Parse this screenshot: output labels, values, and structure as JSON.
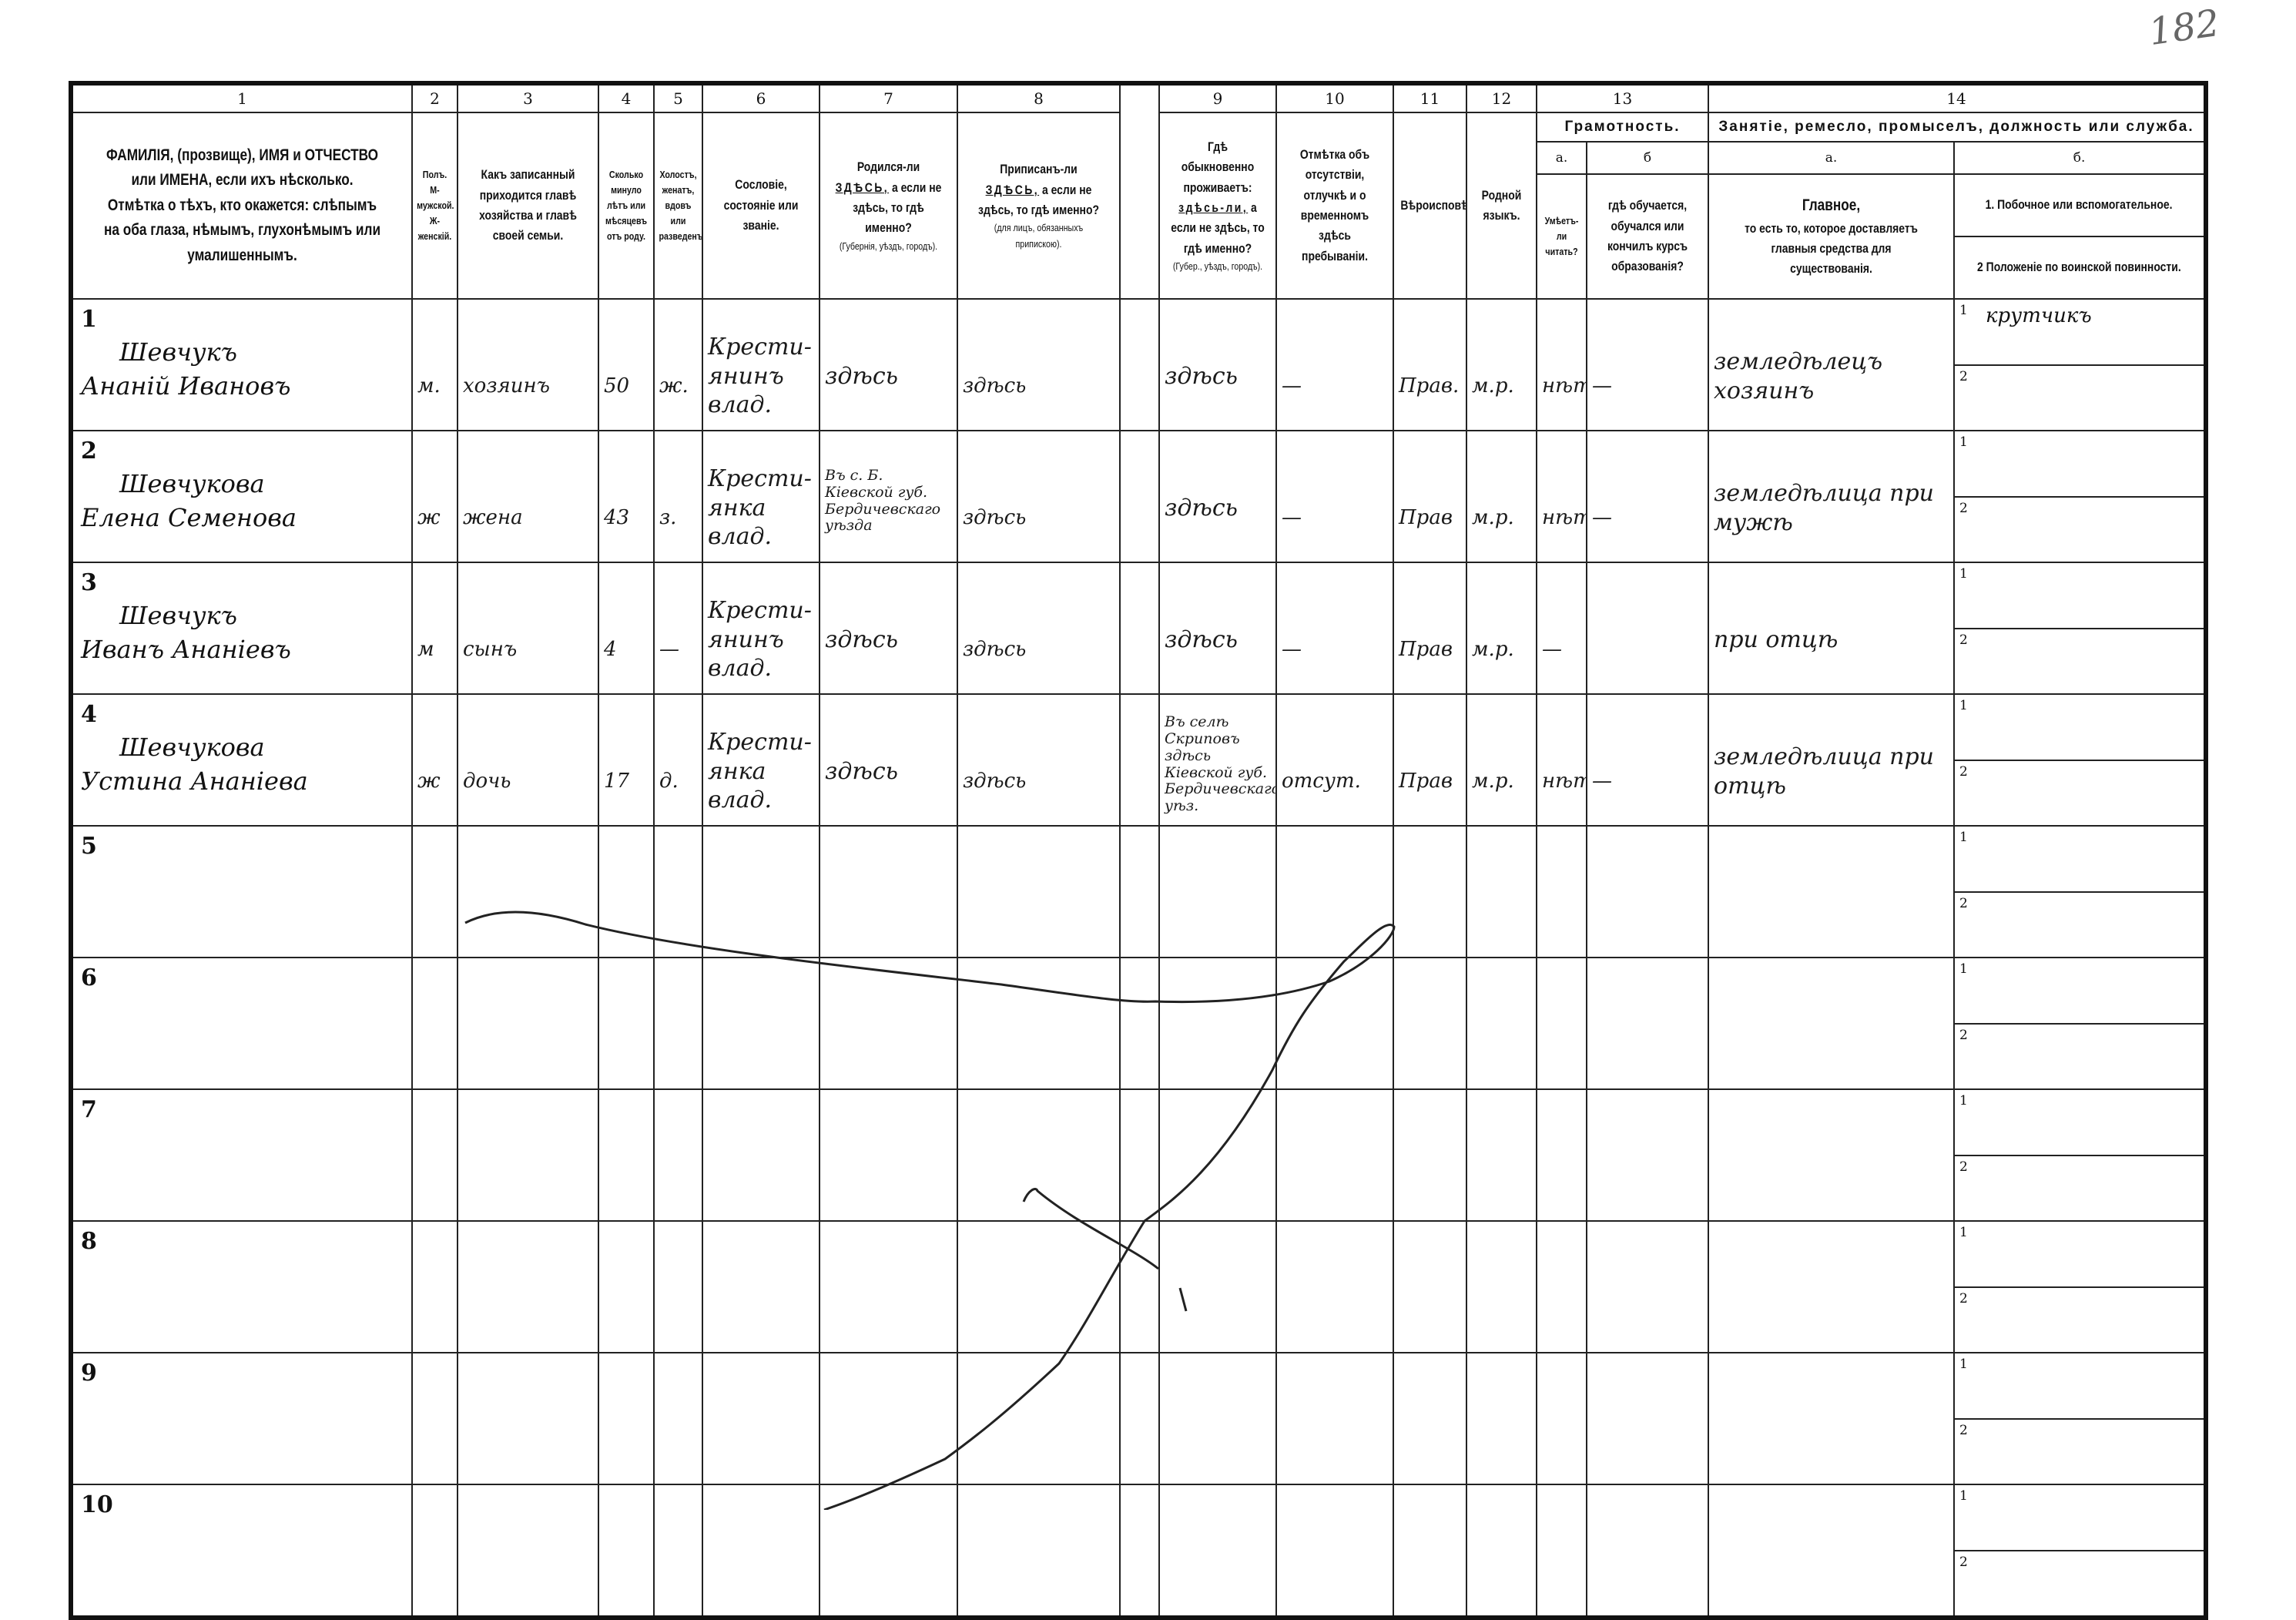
{
  "page_number_mark": "182",
  "column_numbers": [
    "1",
    "2",
    "3",
    "4",
    "5",
    "6",
    "7",
    "8",
    "9",
    "10",
    "11",
    "12",
    "13",
    "14"
  ],
  "headers": {
    "c1": [
      "ФАМИЛІЯ, (прозвище), ИМЯ и ОТЧЕСТВО или ИМЕНА, если ихъ нѣсколько.",
      "Отмѣтка о тѣхъ, кто окажется: слѣпымъ на оба глаза, нѣмымъ, глухонѣмымъ или умалишеннымъ."
    ],
    "c2": [
      "Полъ.",
      "М-мужской.",
      "Ж-женскій."
    ],
    "c3": "Какъ записанный приходится главѣ хозяйства и главѣ своей семьи.",
    "c4": "Сколько минуло лѣтъ или мѣсяцевъ отъ роду.",
    "c5": "Холостъ, женатъ, вдовъ или разведенъ.",
    "c6": "Сословіе, состояніе или званіе.",
    "c7": {
      "pre": "Родился-ли",
      "u": "ЗДѢСЬ,",
      "post": "а если не здѣсь, то гдѣ именно?",
      "note": "(Губернія, уѣздъ, городъ)."
    },
    "c8": {
      "pre": "Приписанъ-ли",
      "u": "ЗДѢСЬ,",
      "post": "а если не здѣсь, то гдѣ именно?",
      "note": "(для лицъ, обязанныхъ припискою)."
    },
    "c9": {
      "pre": "Гдѣ обыкновенно проживаетъ:",
      "u": "здѣсь-ли,",
      "post": "а если не здѣсь, то гдѣ именно?",
      "note": "(Губер., уѣздъ, городъ)."
    },
    "c10": "Отмѣтка объ отсутствіи, отлучкѣ и о временномъ здѣсь пребываніи.",
    "c11": "Вѣроисповѣданіе.",
    "c12": "Родной языкъ.",
    "c13": {
      "title": "Грамотность.",
      "a": "а.",
      "b": "б",
      "a_text": "Умѣетъ-ли читать?",
      "b_text": "гдѣ обучается, обучался или кончилъ курсъ образованія?"
    },
    "c14": {
      "title": "Занятіе, ремесло, промыселъ, должность или служба.",
      "a": "а.",
      "b": "б.",
      "a_title": "Главное,",
      "a_text": "то есть то, которое доставляетъ главныя средства для существованія.",
      "b1": "1. Побочное или вспомогательное.",
      "b2": "2 Положеніе по воинской повинности."
    }
  },
  "sub_slot_labels": [
    "1",
    "2"
  ],
  "rows": [
    {
      "no": "1",
      "surname": "Шевчукъ",
      "given": "Ананій Ивановъ",
      "sex": "м.",
      "relation": "хозяинъ",
      "age": "50",
      "marital": "ж.",
      "estate": "Крести-янинъ влад.",
      "born": "здѣсь",
      "registered": "здѣсь",
      "resides": "здѣсь",
      "absence": "—",
      "religion": "Прав.",
      "language": "м.р.",
      "literate": "нѣтъ",
      "schooling": "—",
      "occupation": "земледѣлецъ хозяинъ",
      "secondary": "крутчикъ",
      "military": ""
    },
    {
      "no": "2",
      "surname": "Шевчукова",
      "given": "Елена Семенова",
      "sex": "ж",
      "relation": "жена",
      "age": "43",
      "marital": "з.",
      "estate": "Крести-янка влад.",
      "born": "Въ с. Б. Кіевской губ. Бердичевскаго уѣзда",
      "registered": "здѣсь",
      "resides": "здѣсь",
      "absence": "—",
      "religion": "Прав",
      "language": "м.р.",
      "literate": "нѣтъ",
      "schooling": "—",
      "occupation": "земледѣлица при мужѣ",
      "secondary": "",
      "military": ""
    },
    {
      "no": "3",
      "surname": "Шевчукъ",
      "given": "Иванъ Ананіевъ",
      "sex": "м",
      "relation": "сынъ",
      "age": "4",
      "marital": "—",
      "estate": "Крести-янинъ влад.",
      "born": "здѣсь",
      "registered": "здѣсь",
      "resides": "здѣсь",
      "absence": "—",
      "religion": "Прав",
      "language": "м.р.",
      "literate": "—",
      "schooling": "",
      "occupation": "при отцѣ",
      "secondary": "",
      "military": ""
    },
    {
      "no": "4",
      "surname": "Шевчукова",
      "given": "Устина Ананіева",
      "sex": "ж",
      "relation": "дочь",
      "age": "17",
      "marital": "д.",
      "estate": "Крести-янка влад.",
      "born": "здѣсь",
      "registered": "здѣсь",
      "resides": "Въ селѣ Скриповъ здѣсь Кіевской губ. Бердичевскаго уѣз.",
      "absence": "отсут.",
      "religion": "Прав",
      "language": "м.р.",
      "literate": "нѣтъ",
      "schooling": "—",
      "occupation": "земледѣлица при отцѣ",
      "secondary": "",
      "military": ""
    },
    {
      "no": "5"
    },
    {
      "no": "6"
    },
    {
      "no": "7"
    },
    {
      "no": "8"
    },
    {
      "no": "9"
    },
    {
      "no": "10"
    }
  ]
}
